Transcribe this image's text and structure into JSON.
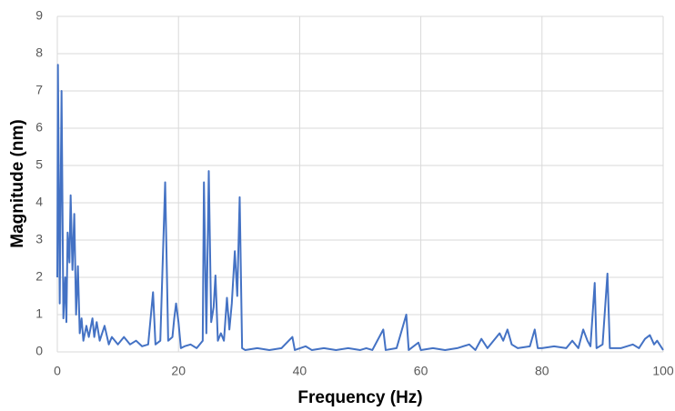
{
  "chart_data": {
    "type": "line",
    "x_label": "Frequency (Hz)",
    "y_label": "Magnitude (nm)",
    "xlim": [
      0,
      100
    ],
    "ylim": [
      0,
      9
    ],
    "xticks": [
      0,
      20,
      40,
      60,
      80,
      100
    ],
    "yticks": [
      0,
      1,
      2,
      3,
      4,
      5,
      6,
      7,
      8,
      9
    ],
    "grid": true,
    "series": [
      {
        "color": "#4472c4",
        "x": [
          0,
          0.1,
          0.4,
          0.7,
          1.0,
          1.3,
          1.5,
          1.7,
          2.0,
          2.2,
          2.5,
          2.8,
          3.1,
          3.4,
          3.7,
          4.0,
          4.3,
          4.8,
          5.2,
          5.8,
          6.1,
          6.5,
          7.0,
          7.8,
          8.5,
          9,
          10,
          11,
          12,
          13,
          14,
          15,
          15.8,
          16.2,
          17,
          17.8,
          18.3,
          19,
          19.3,
          19.6,
          20,
          20.4,
          21,
          22,
          23,
          24,
          24.2,
          24.6,
          25,
          25.4,
          25.8,
          26.1,
          26.5,
          27,
          27.5,
          28,
          28.4,
          28.8,
          29.3,
          29.7,
          30.1,
          30.5,
          31,
          33,
          35,
          37,
          38.8,
          39.2,
          41,
          42,
          44,
          46,
          48,
          50,
          51,
          52,
          53.8,
          54.2,
          56,
          57.6,
          58,
          59.6,
          60,
          62,
          64,
          66,
          68,
          69,
          70,
          71,
          73,
          73.6,
          74.3,
          75,
          76,
          78,
          78.8,
          79.3,
          80,
          82,
          84,
          85,
          86,
          86.8,
          87.5,
          88,
          88.7,
          89,
          90,
          90.8,
          91.2,
          93,
          95,
          96,
          97,
          97.8,
          98.5,
          99,
          100
        ],
        "values": [
          2.0,
          7.7,
          1.3,
          7.0,
          0.9,
          2.0,
          0.8,
          3.2,
          2.4,
          4.2,
          2.2,
          3.7,
          1.0,
          2.3,
          0.5,
          0.9,
          0.3,
          0.7,
          0.4,
          0.9,
          0.4,
          0.8,
          0.3,
          0.7,
          0.2,
          0.4,
          0.2,
          0.4,
          0.2,
          0.3,
          0.15,
          0.2,
          1.6,
          0.2,
          0.3,
          4.55,
          0.3,
          0.4,
          0.9,
          1.3,
          0.8,
          0.1,
          0.15,
          0.2,
          0.1,
          0.3,
          4.55,
          0.5,
          4.85,
          0.8,
          1.2,
          2.05,
          0.3,
          0.5,
          0.3,
          1.45,
          0.6,
          1.3,
          2.7,
          1.5,
          4.15,
          0.1,
          0.05,
          0.1,
          0.05,
          0.1,
          0.4,
          0.05,
          0.15,
          0.05,
          0.1,
          0.05,
          0.1,
          0.05,
          0.1,
          0.05,
          0.6,
          0.05,
          0.1,
          1.0,
          0.05,
          0.25,
          0.05,
          0.1,
          0.05,
          0.1,
          0.2,
          0.05,
          0.35,
          0.1,
          0.5,
          0.3,
          0.6,
          0.2,
          0.1,
          0.15,
          0.6,
          0.1,
          0.1,
          0.15,
          0.1,
          0.3,
          0.1,
          0.6,
          0.3,
          0.15,
          1.85,
          0.1,
          0.2,
          2.1,
          0.1,
          0.1,
          0.2,
          0.1,
          0.35,
          0.45,
          0.2,
          0.3,
          0.05
        ]
      }
    ]
  }
}
